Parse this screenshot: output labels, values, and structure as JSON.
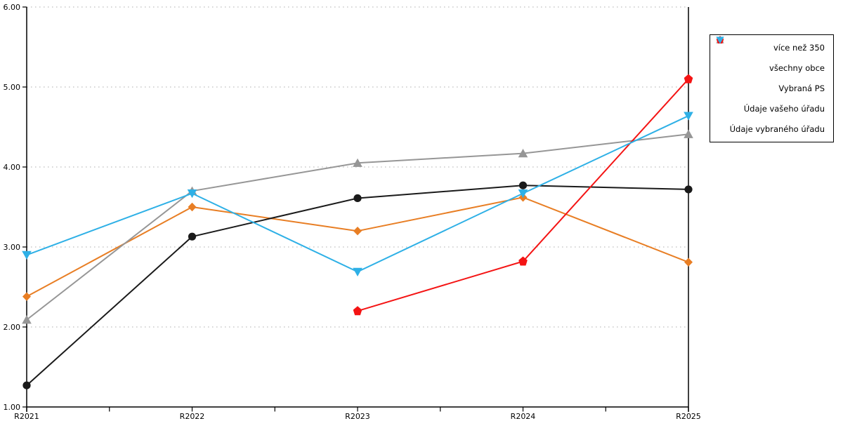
{
  "chart_data": {
    "type": "line",
    "title": "",
    "xlabel": "",
    "ylabel": "",
    "categories": [
      "R2021",
      "R2022",
      "R2023",
      "R2024",
      "R2025"
    ],
    "series": [
      {
        "name": "více než 350",
        "color": "#E87E24",
        "marker": "diamond",
        "values": [
          2.38,
          3.5,
          3.2,
          3.62,
          2.81
        ]
      },
      {
        "name": "všechny obce",
        "color": "#1A1A1A",
        "marker": "circle",
        "values": [
          1.27,
          3.13,
          3.61,
          3.77,
          3.72
        ]
      },
      {
        "name": "Vybraná PS",
        "color": "#969696",
        "marker": "triangle-up",
        "values": [
          2.09,
          3.7,
          4.05,
          4.17,
          4.41
        ]
      },
      {
        "name": "Údaje vašeho úřadu",
        "color": "#F41414",
        "marker": "pentagon",
        "values": [
          null,
          null,
          2.2,
          2.82,
          5.1
        ]
      },
      {
        "name": "Údaje vybraného úřadu",
        "color": "#2EB0E6",
        "marker": "triangle-down",
        "values": [
          2.9,
          3.67,
          2.69,
          3.67,
          4.64
        ]
      }
    ],
    "ylim": [
      1,
      6
    ],
    "y_tick_labels": [
      "1.00",
      "2.00",
      "3.00",
      "4.00",
      "5.00",
      "6.00"
    ],
    "grid": "horizontal-dotted",
    "legend_position": "right"
  },
  "style": {
    "axis_color": "#000000",
    "grid_color": "#BDBDBD",
    "background": "#FFFFFF",
    "legend_border_color": "#000000"
  }
}
